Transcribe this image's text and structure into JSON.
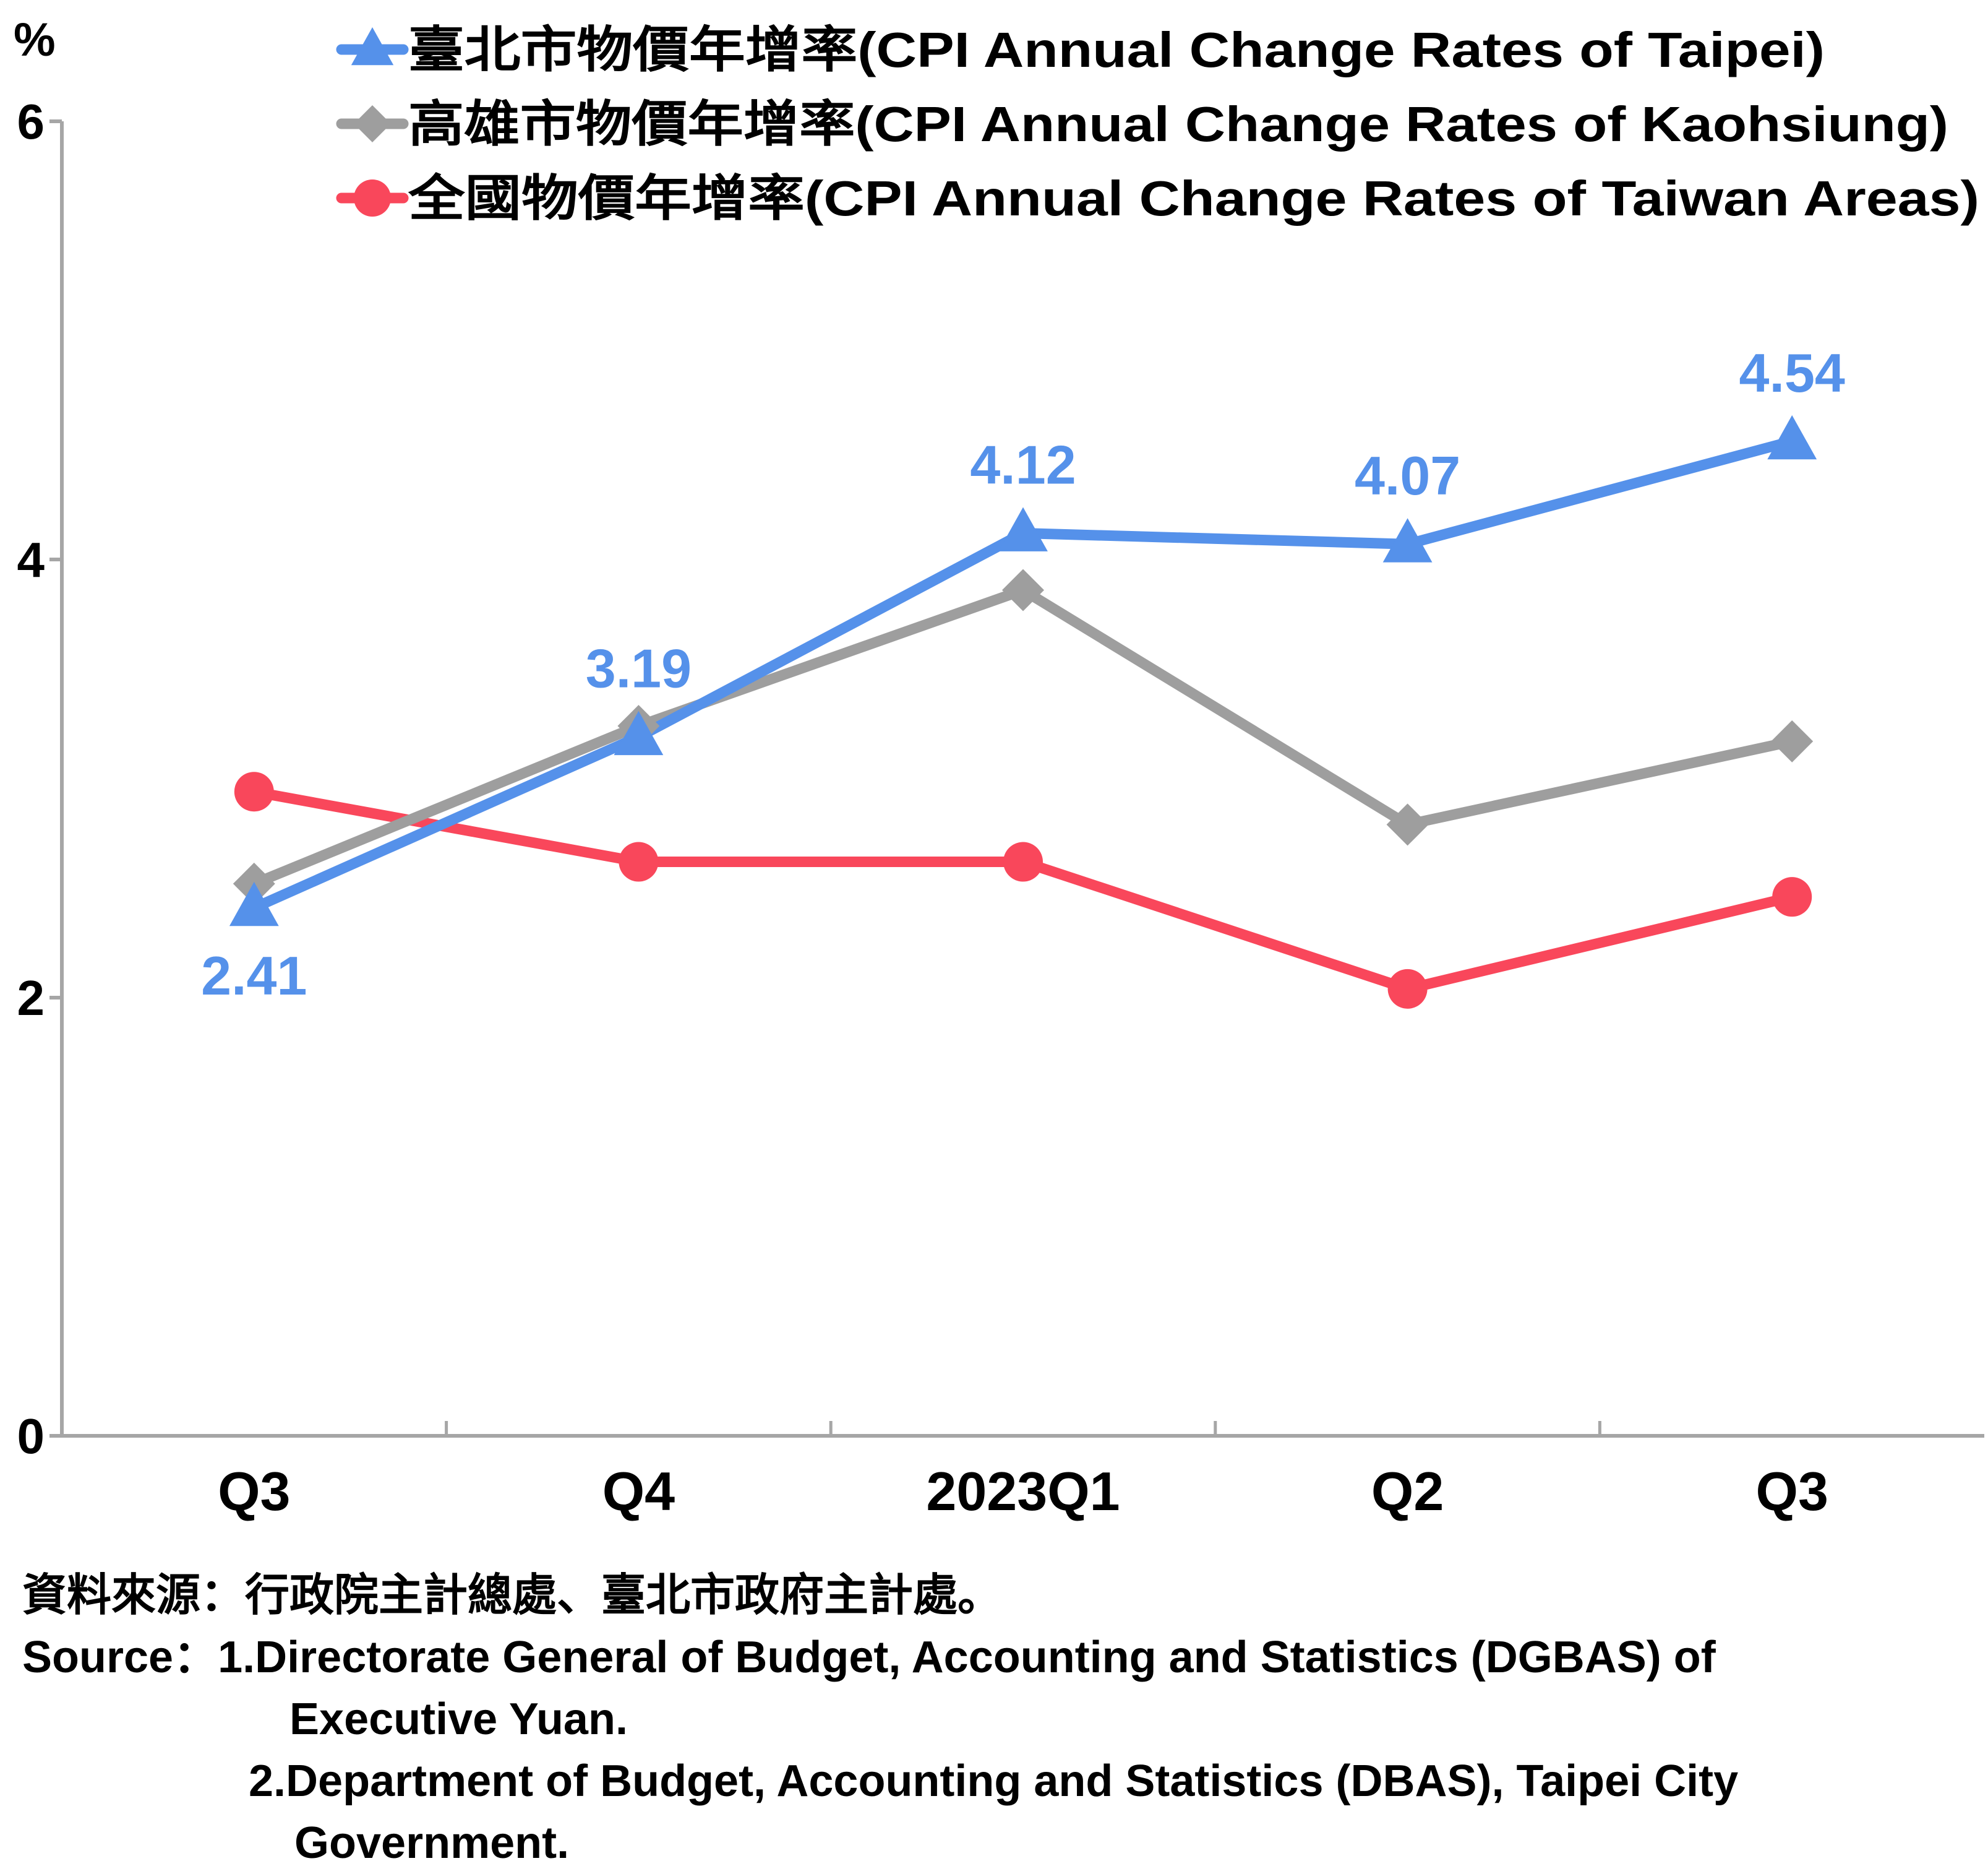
{
  "chart_data": {
    "type": "line",
    "unit_label": "%",
    "categories": [
      "Q3",
      "Q4",
      "2023Q1",
      "Q2",
      "Q3"
    ],
    "ylim": [
      0,
      6
    ],
    "yticks": [
      "0",
      "2",
      "4",
      "6"
    ],
    "grid": false,
    "legend_position": "top",
    "series": [
      {
        "name": "臺北市物價年增率(CPI Annual Change Rates of Taipei)",
        "color": "#5591EA",
        "marker": "triangle",
        "values": [
          2.41,
          3.19,
          4.12,
          4.07,
          4.54
        ],
        "labels": [
          "2.41",
          "3.19",
          "4.12",
          "4.07",
          "4.54"
        ]
      },
      {
        "name": "高雄市物價年增率(CPI Annual Change Rates of Kaohsiung)",
        "color": "#9E9E9E",
        "marker": "diamond",
        "values": [
          2.52,
          3.24,
          3.86,
          2.79,
          3.17
        ]
      },
      {
        "name": "全國物價年增率(CPI Annual Change Rates of Taiwan Areas)",
        "color": "#F9475B",
        "marker": "circle",
        "values": [
          2.94,
          2.62,
          2.62,
          2.04,
          2.46
        ]
      }
    ]
  },
  "sources": {
    "line1": "資料來源：行政院主計總處、臺北市政府主計處。",
    "line2": "Source：1.Directorate General of Budget, Accounting and Statistics (DGBAS) of",
    "line3": "Executive Yuan.",
    "line4": "2.Department of Budget, Accounting and Statistics (DBAS), Taipei City",
    "line5": "Government."
  }
}
